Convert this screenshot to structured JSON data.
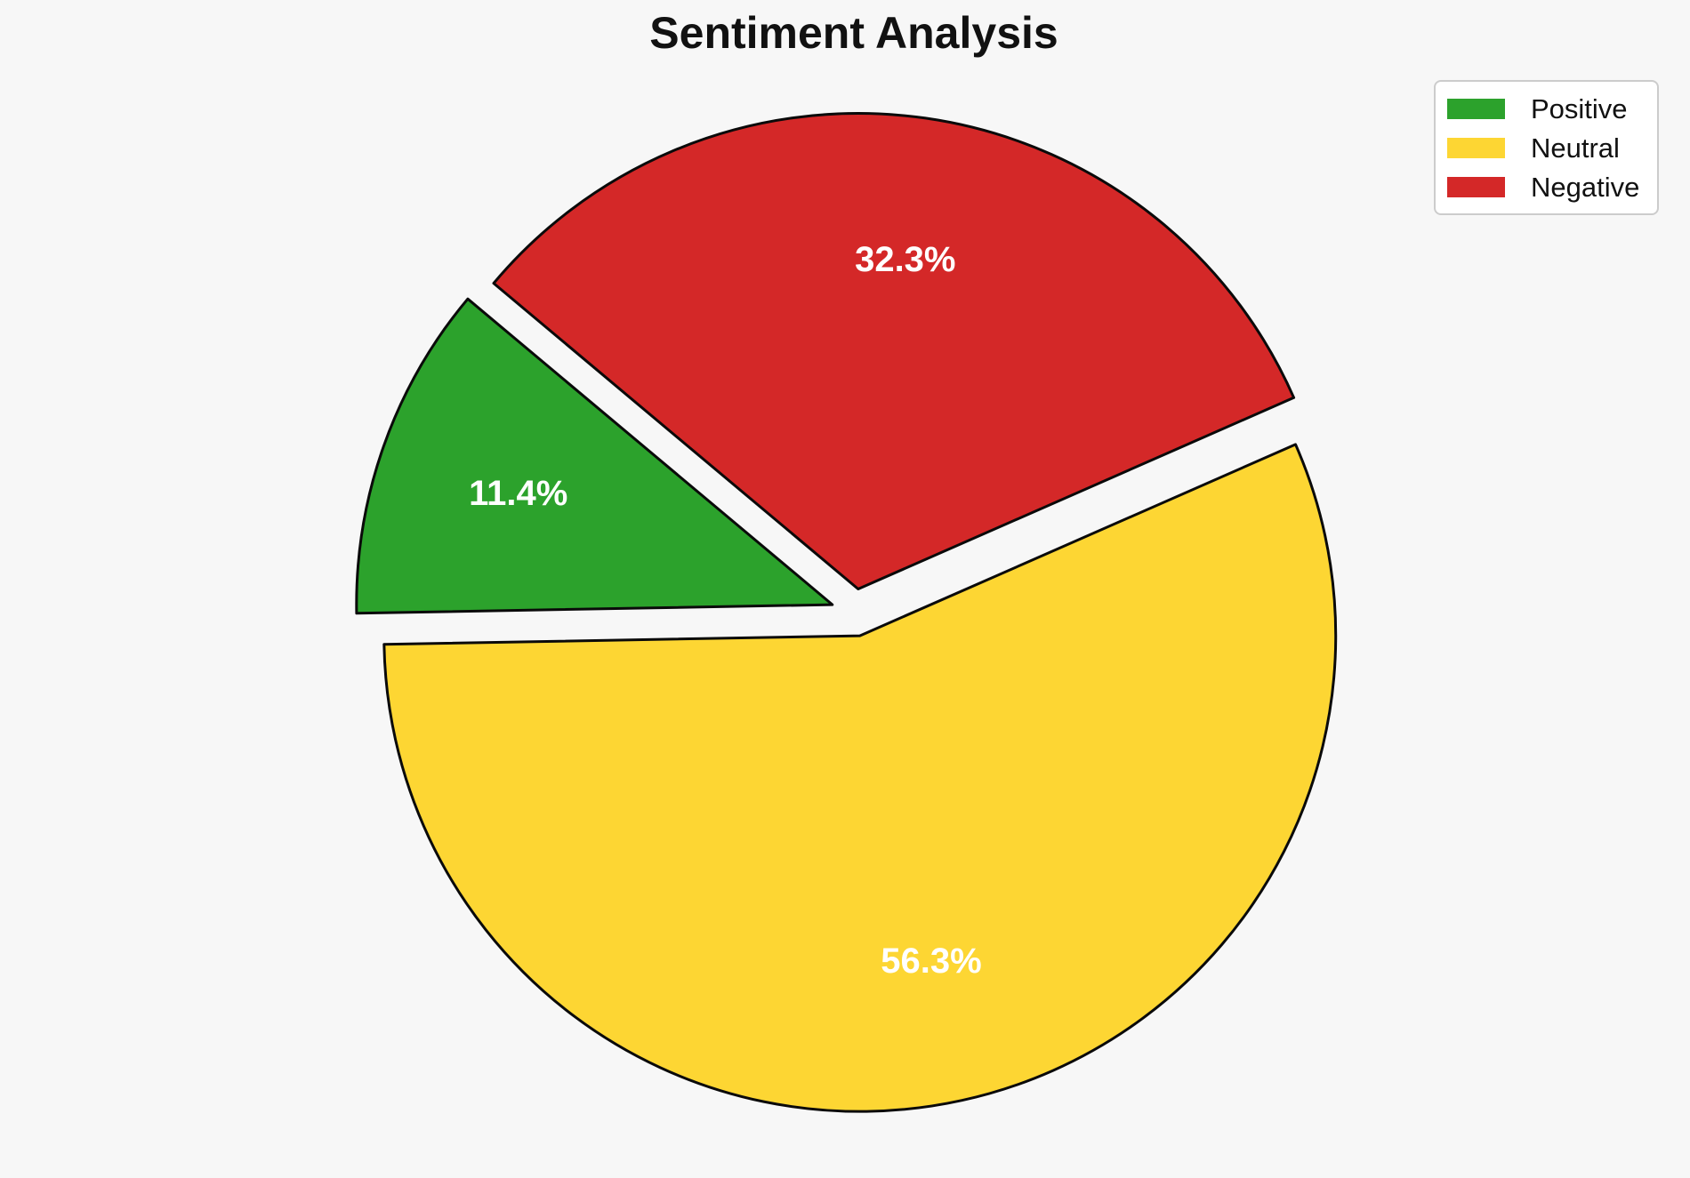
{
  "chart_data": {
    "type": "pie",
    "title": "Sentiment Analysis",
    "labels": [
      "Positive",
      "Neutral",
      "Negative"
    ],
    "values": [
      11.4,
      56.3,
      32.3
    ],
    "autopct_labels": [
      "11.4%",
      "56.3%",
      "32.3%"
    ],
    "colors": [
      "#2ca22c",
      "#fdd633",
      "#d42828"
    ],
    "startangle": 140,
    "counterclock": true,
    "explode": [
      0.05,
      0.05,
      0.05
    ],
    "pctdistance": 0.7,
    "slice_edge_color": "#0a0a0a",
    "pct_label_color": "#ffffff",
    "background_color": "#f7f7f7",
    "legend": {
      "position": "upper right",
      "entries": [
        {
          "label": "Positive",
          "color": "#2ca22c"
        },
        {
          "label": "Neutral",
          "color": "#fdd633"
        },
        {
          "label": "Negative",
          "color": "#d42828"
        }
      ]
    }
  }
}
